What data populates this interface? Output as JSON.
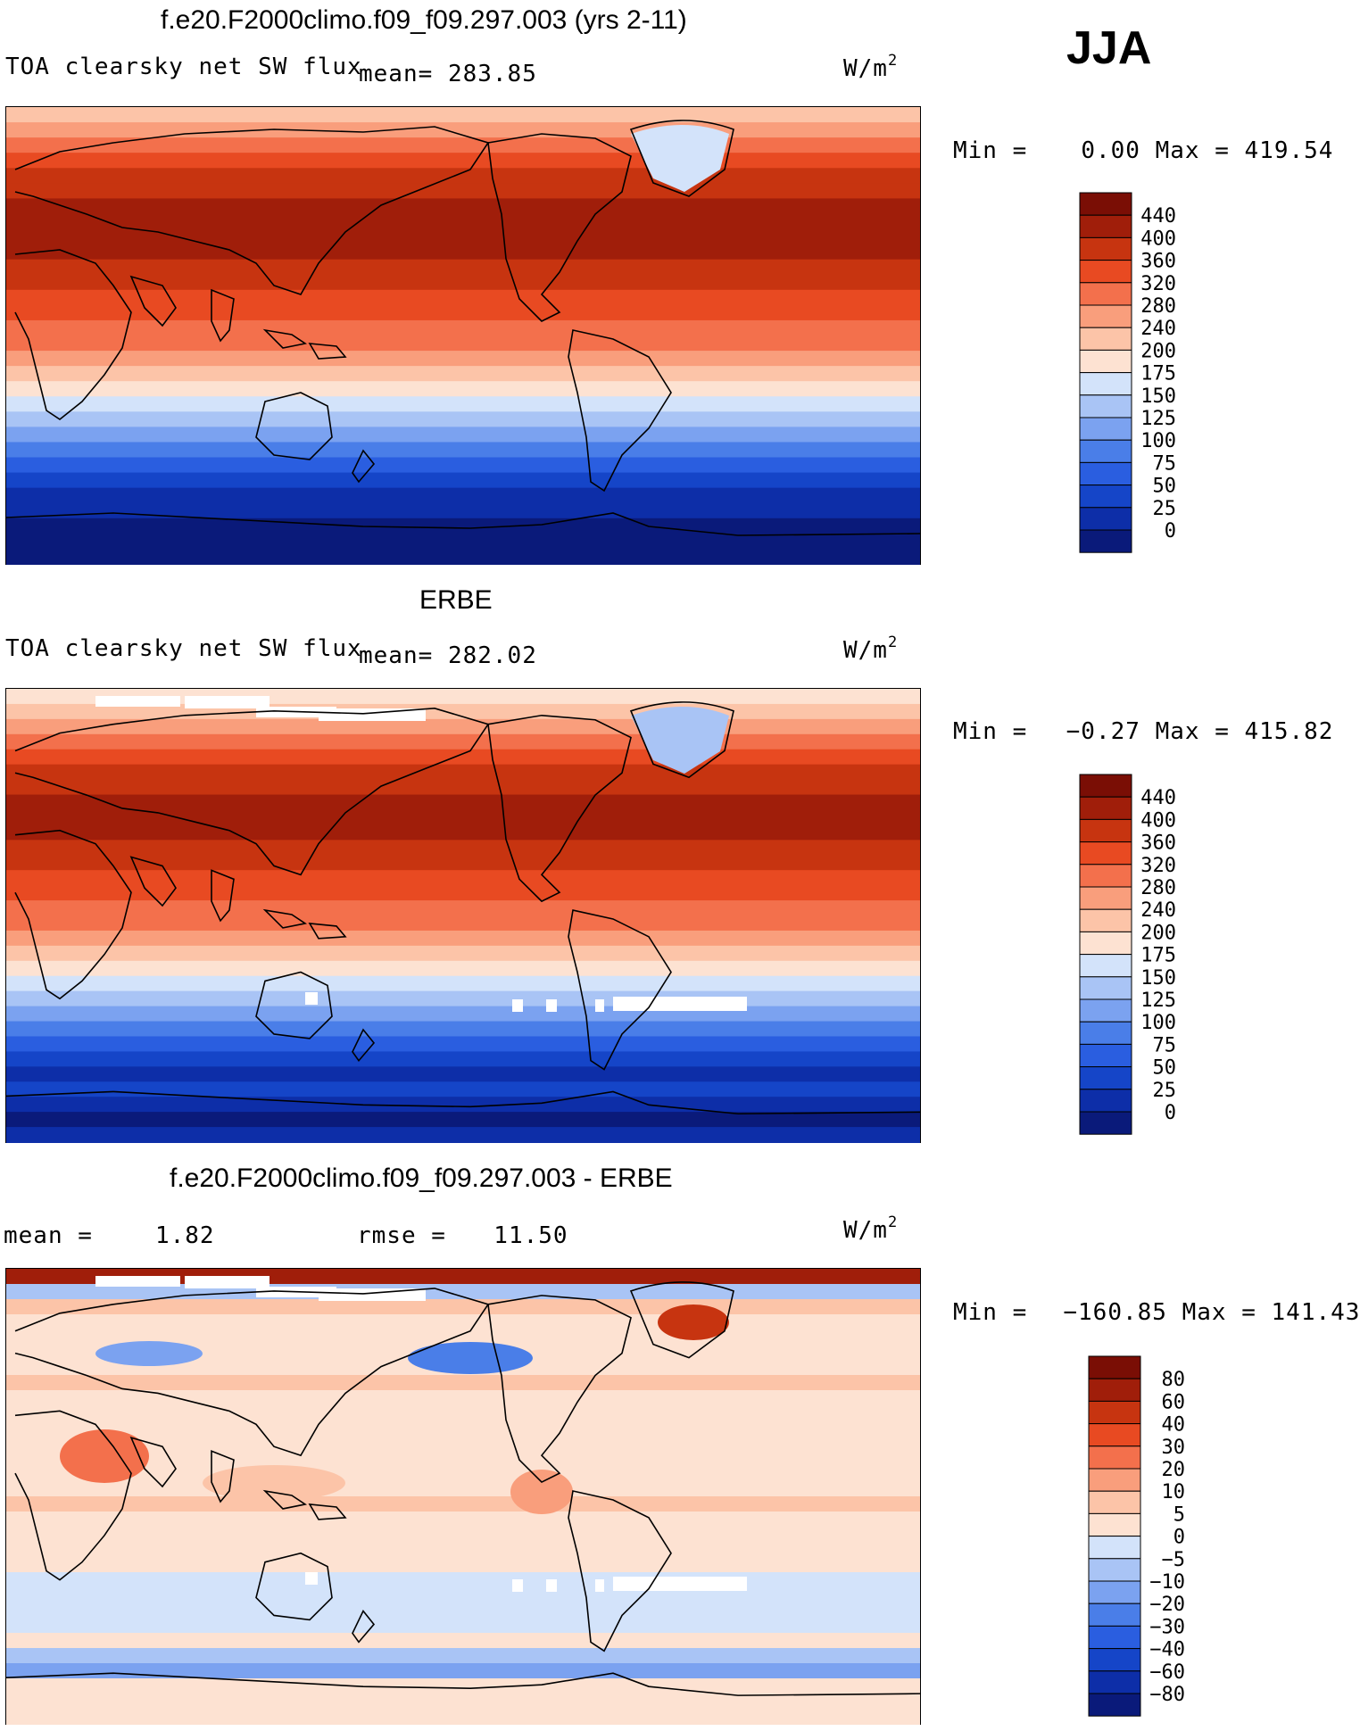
{
  "season": "JJA",
  "colors": {
    "flux_scale": [
      "#0a1a7a",
      "#0d2ea8",
      "#1545c8",
      "#2a5ee0",
      "#4a7ee8",
      "#7ba2f0",
      "#a9c4f5",
      "#d3e3fa",
      "#fde2d2",
      "#fcc4a8",
      "#f99e7c",
      "#f3704c",
      "#e84a22",
      "#c73410",
      "#a01e0a",
      "#7a0e05"
    ],
    "diff_scale": [
      "#0a1a7a",
      "#0d2ea8",
      "#1545c8",
      "#2a5ee0",
      "#4a7ee8",
      "#7ba2f0",
      "#a9c4f5",
      "#d3e3fa",
      "#fde2d2",
      "#fcc4a8",
      "#f99e7c",
      "#f3704c",
      "#e84a22",
      "#c73410",
      "#a01e0a",
      "#7a0e05"
    ]
  },
  "panels": [
    {
      "title": "f.e20.F2000climo.f09_f09.297.003 (yrs 2-11)",
      "variable": "TOA clearsky net SW flux",
      "mean_label": "mean=",
      "mean_value": "283.85",
      "units": "W/m",
      "units_exp": "2",
      "min_label": "Min =",
      "min_value": "0.00",
      "max_label": "Max =",
      "max_value": "419.54",
      "colorbar_labels": [
        "440",
        "400",
        "360",
        "320",
        "280",
        "240",
        "200",
        "175",
        "150",
        "125",
        "100",
        "75",
        "50",
        "25",
        "0"
      ]
    },
    {
      "title": "ERBE",
      "variable": "TOA clearsky net SW flux",
      "mean_label": "mean=",
      "mean_value": "282.02",
      "units": "W/m",
      "units_exp": "2",
      "min_label": "Min =",
      "min_value": "−0.27",
      "max_label": "Max =",
      "max_value": "415.82",
      "colorbar_labels": [
        "440",
        "400",
        "360",
        "320",
        "280",
        "240",
        "200",
        "175",
        "150",
        "125",
        "100",
        "75",
        "50",
        "25",
        "0"
      ]
    },
    {
      "title": "f.e20.F2000climo.f09_f09.297.003 - ERBE",
      "mean_label": "mean =",
      "mean_value": "1.82",
      "rmse_label": "rmse =",
      "rmse_value": "11.50",
      "units": "W/m",
      "units_exp": "2",
      "min_label": "Min =",
      "min_value": "−160.85",
      "max_label": "Max =",
      "max_value": "141.43",
      "colorbar_labels": [
        "80",
        "60",
        "40",
        "30",
        "20",
        "10",
        "5",
        "0",
        "−5",
        "−10",
        "−20",
        "−30",
        "−40",
        "−60",
        "−80"
      ]
    }
  ]
}
